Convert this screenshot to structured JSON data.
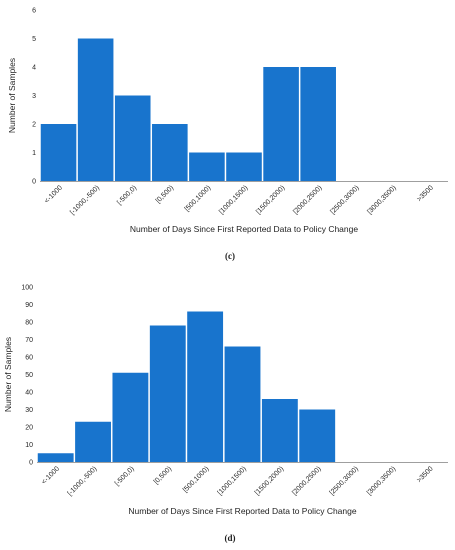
{
  "colors": {
    "bar": "#1874CD",
    "axis": "#7f7f7f",
    "text": "#1f1f1f"
  },
  "chart_data": [
    {
      "type": "bar",
      "caption": "(c)",
      "categories": [
        "<-1000",
        "[-1000,-500)",
        "[-500,0)",
        "[0,500)",
        "[500,1000)",
        "[1000,1500)",
        "[1500,2000)",
        "[2000,2500)",
        "[2500,3000)",
        "[3000,3500)",
        ">3500"
      ],
      "values": [
        2,
        5,
        3,
        2,
        1,
        1,
        4,
        4,
        0,
        0,
        0
      ],
      "xlabel": "Number of Days Since First Reported Data to Policy Change",
      "ylabel": "Number of Samples",
      "ylim": [
        0,
        6
      ],
      "yticks": [
        0,
        1,
        2,
        3,
        4,
        5,
        6
      ],
      "grid": false,
      "legend": "none"
    },
    {
      "type": "bar",
      "caption": "(d)",
      "categories": [
        "<-1000",
        "[-1000,-500)",
        "[-500,0)",
        "[0,500)",
        "[500,1000)",
        "[1000,1500)",
        "[1500,2000)",
        "[2000,2500)",
        "[2500,3000)",
        "[3000,3500)",
        ">3500"
      ],
      "values": [
        5,
        23,
        51,
        78,
        86,
        66,
        36,
        30,
        0,
        0,
        0
      ],
      "xlabel": "Number of Days Since First Reported Data to Policy Change",
      "ylabel": "Number of Samples",
      "ylim": [
        0,
        100
      ],
      "yticks": [
        0,
        10,
        20,
        30,
        40,
        50,
        60,
        70,
        80,
        90,
        100
      ],
      "grid": false,
      "legend": "none"
    }
  ]
}
